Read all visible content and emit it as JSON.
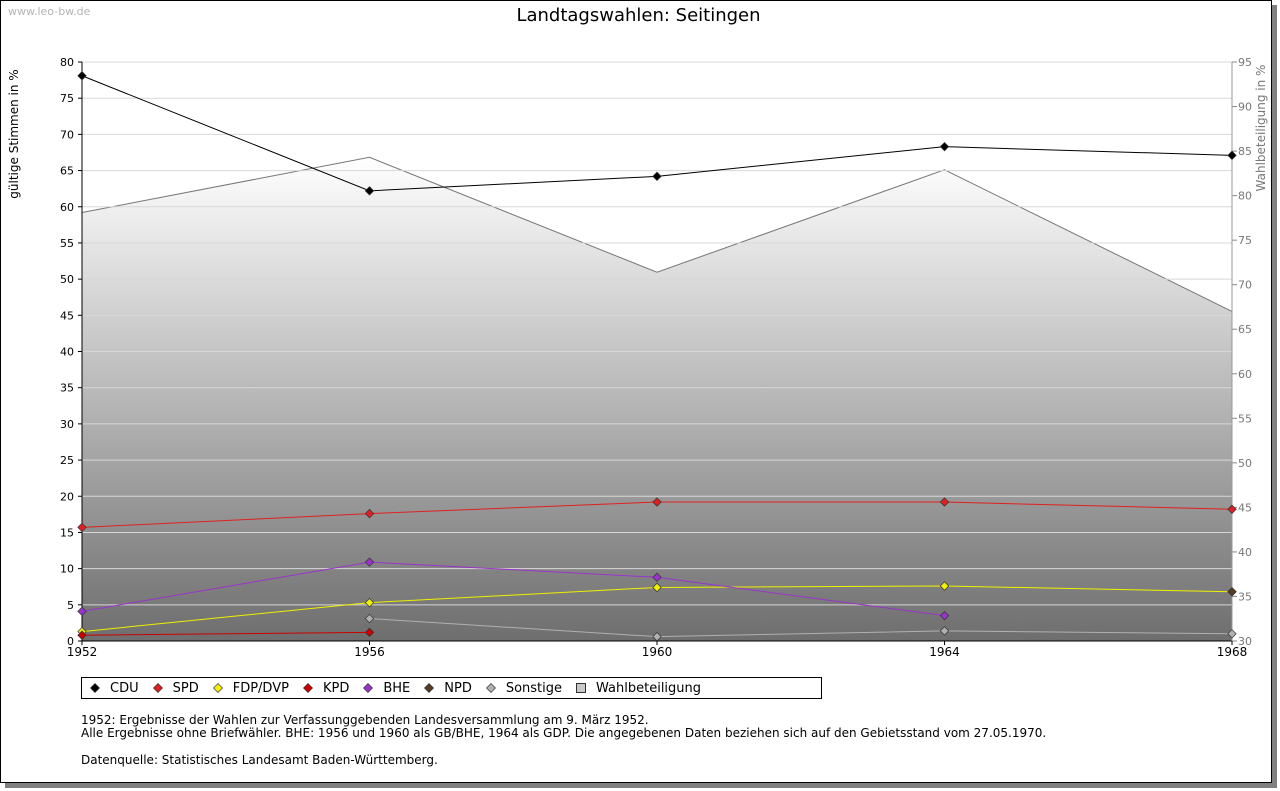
{
  "site_label": "www.leo-bw.de",
  "chart_data": {
    "type": "line",
    "title": "Landtagswahlen: Seitingen",
    "ylabel": "gültige Stimmen in %",
    "y2label": "Wahlbeteiligung in %",
    "x": [
      "1952",
      "1956",
      "1960",
      "1964",
      "1968"
    ],
    "ylim": [
      0,
      80
    ],
    "y2lim": [
      30,
      95
    ],
    "yticks": [
      "0",
      "5",
      "10",
      "15",
      "20",
      "25",
      "30",
      "35",
      "40",
      "45",
      "50",
      "55",
      "60",
      "65",
      "70",
      "75",
      "80"
    ],
    "y2ticks": [
      "30",
      "35",
      "40",
      "45",
      "50",
      "55",
      "60",
      "65",
      "70",
      "75",
      "80",
      "85",
      "90",
      "95"
    ],
    "grid": true,
    "legend_position": "bottom",
    "series": [
      {
        "name": "CDU",
        "color": "#000000",
        "values": [
          78.1,
          62.2,
          64.2,
          68.3,
          67.1
        ]
      },
      {
        "name": "SPD",
        "color": "#e02020",
        "values": [
          15.7,
          17.6,
          19.2,
          19.2,
          18.2
        ]
      },
      {
        "name": "FDP/DVP",
        "color": "#f0f000",
        "values": [
          1.3,
          5.3,
          7.4,
          7.6,
          6.8
        ]
      },
      {
        "name": "KPD",
        "color": "#cc0000",
        "values": [
          0.8,
          1.2,
          null,
          null,
          null
        ]
      },
      {
        "name": "BHE",
        "color": "#9933cc",
        "values": [
          4.1,
          10.9,
          8.8,
          3.5,
          null
        ]
      },
      {
        "name": "NPD",
        "color": "#5a3a22",
        "values": [
          null,
          null,
          null,
          null,
          6.8
        ]
      },
      {
        "name": "Sonstige",
        "color": "#b0b0b0",
        "values": [
          null,
          3.1,
          0.6,
          1.4,
          1.0
        ]
      },
      {
        "name": "Wahlbeteiligung",
        "color": "#c8c8c8",
        "axis": "right",
        "type": "area",
        "values": [
          78.1,
          84.3,
          71.4,
          82.9,
          67.0
        ]
      }
    ]
  },
  "notes": [
    "1952: Ergebnisse der Wahlen zur Verfassunggebenden Landesversammlung am 9. März 1952.",
    "Alle Ergebnisse ohne Briefwähler. BHE: 1956 und 1960 als GB/BHE, 1964 als GDP. Die angegebenen Daten beziehen sich auf den Gebietsstand vom 27.05.1970."
  ],
  "source": "Datenquelle: Statistisches Landesamt Baden-Württemberg."
}
